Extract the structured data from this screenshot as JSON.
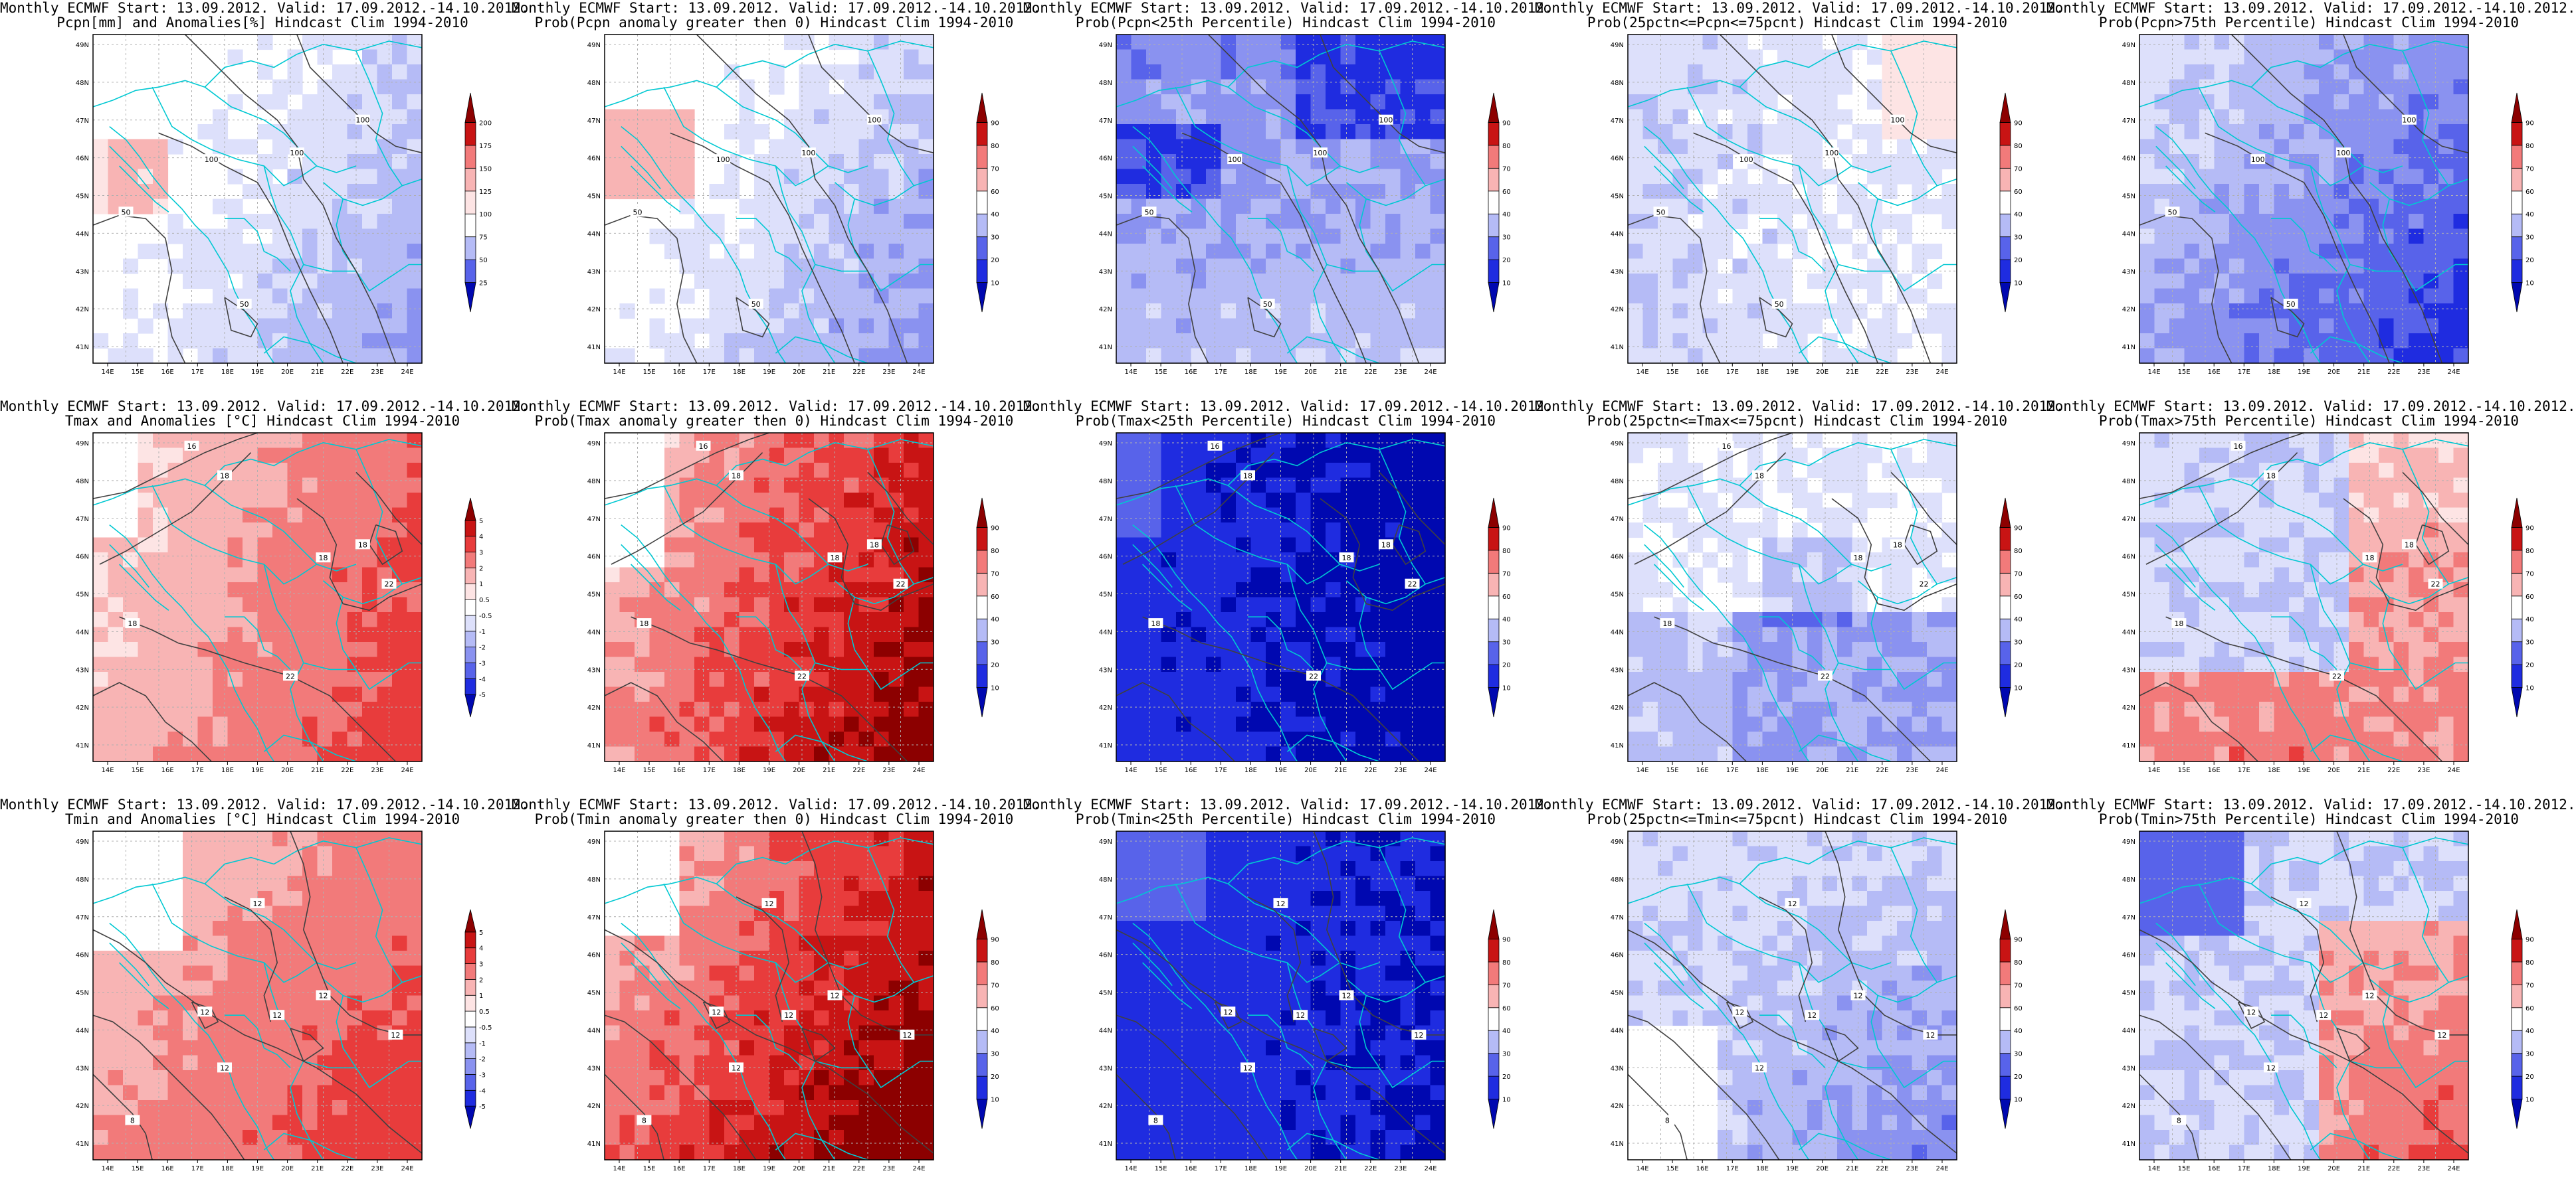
{
  "figure": {
    "colors": {
      "frame": "#000000",
      "coast": "#00c8d2",
      "contour": "#404040",
      "grid": "#b0b0b0",
      "reds": [
        "#ffffff",
        "#fde4e4",
        "#f8b4b4",
        "#f27a7a",
        "#e83c3c",
        "#c81414",
        "#8c0000"
      ],
      "blues": [
        "#ffffff",
        "#dde0fb",
        "#b5bbf6",
        "#8a92f0",
        "#5863ea",
        "#1f2ce0",
        "#0008b0"
      ]
    },
    "lon_labels": [
      "14E",
      "15E",
      "16E",
      "17E",
      "18E",
      "19E",
      "20E",
      "21E",
      "22E",
      "23E",
      "24E"
    ],
    "lat_labels": [
      "41N",
      "42N",
      "43N",
      "44N",
      "45N",
      "46N",
      "47N",
      "48N",
      "49N"
    ],
    "rows": [
      {
        "variable": "precipitation",
        "panels": [
          {
            "title_line1": "Monthly ECMWF Start: 13.09.2012. Valid: 17.09.2012.-14.10.2012.",
            "title_line2": "Pcpn[mm] and Anomalies[%] Hindcast Clim 1994-2010",
            "scheme": "anom",
            "colorbar_labels": [
              "25",
              "50",
              "75",
              "100",
              "125",
              "150",
              "175",
              "200"
            ],
            "contour_labels": [
              "50",
              "100",
              "100",
              "50",
              "100"
            ]
          },
          {
            "title_line1": "Monthly ECMWF Start: 13.09.2012. Valid: 17.09.2012.-14.10.2012.",
            "title_line2": "Prob(Pcpn anomaly greater then 0) Hindcast Clim 1994-2010",
            "scheme": "prob",
            "colorbar_labels": [
              "10",
              "20",
              "30",
              "40",
              "60",
              "70",
              "80",
              "90"
            ],
            "contour_labels": [
              "50",
              "100",
              "100",
              "50",
              "100"
            ]
          },
          {
            "title_line1": "Monthly ECMWF Start: 13.09.2012. Valid: 17.09.2012.-14.10.2012.",
            "title_line2": "Prob(Pcpn<25th Percentile) Hindcast Clim 1994-2010",
            "scheme": "prob",
            "colorbar_labels": [
              "10",
              "20",
              "30",
              "40",
              "60",
              "70",
              "80",
              "90"
            ],
            "contour_labels": [
              "50",
              "100",
              "100",
              "50",
              "100"
            ]
          },
          {
            "title_line1": "Monthly ECMWF Start: 13.09.2012. Valid: 17.09.2012.-14.10.2012.",
            "title_line2": "Prob(25pctn<=Pcpn<=75pcnt) Hindcast Clim 1994-2010",
            "scheme": "prob",
            "colorbar_labels": [
              "10",
              "20",
              "30",
              "40",
              "60",
              "70",
              "80",
              "90"
            ],
            "contour_labels": [
              "50",
              "100",
              "100",
              "50",
              "100"
            ]
          },
          {
            "title_line1": "Monthly ECMWF Start: 13.09.2012. Valid: 17.09.2012.-14.10.2012.",
            "title_line2": "Prob(Pcpn>75th Percentile) Hindcast Clim 1994-2010",
            "scheme": "prob",
            "colorbar_labels": [
              "10",
              "20",
              "30",
              "40",
              "60",
              "70",
              "80",
              "90"
            ],
            "contour_labels": [
              "50",
              "100",
              "100",
              "50",
              "100"
            ]
          }
        ]
      },
      {
        "variable": "tmax",
        "panels": [
          {
            "title_line1": "Monthly ECMWF Start: 13.09.2012. Valid: 17.09.2012.-14.10.2012.",
            "title_line2": "Tmax and Anomalies [°C] Hindcast Clim 1994-2010",
            "scheme": "anom",
            "colorbar_labels": [
              "-5",
              "-4",
              "-3",
              "-2",
              "-1",
              "-0.5",
              "0.5",
              "1",
              "2",
              "3",
              "4",
              "5"
            ],
            "contour_labels": [
              "16",
              "18",
              "18",
              "22",
              "22",
              "18",
              "18"
            ]
          },
          {
            "title_line1": "Monthly ECMWF Start: 13.09.2012. Valid: 17.09.2012.-14.10.2012.",
            "title_line2": "Prob(Tmax anomaly greater then 0) Hindcast Clim 1994-2010",
            "scheme": "prob",
            "colorbar_labels": [
              "10",
              "20",
              "30",
              "40",
              "60",
              "70",
              "80",
              "90"
            ],
            "contour_labels": [
              "16",
              "18",
              "18",
              "22",
              "22",
              "18",
              "18"
            ]
          },
          {
            "title_line1": "Monthly ECMWF Start: 13.09.2012. Valid: 17.09.2012.-14.10.2012.",
            "title_line2": "Prob(Tmax<25th Percentile) Hindcast Clim 1994-2010",
            "scheme": "prob",
            "colorbar_labels": [
              "10",
              "20",
              "30",
              "40",
              "60",
              "70",
              "80",
              "90"
            ],
            "contour_labels": [
              "16",
              "18",
              "18",
              "22",
              "22",
              "18",
              "18"
            ]
          },
          {
            "title_line1": "Monthly ECMWF Start: 13.09.2012. Valid: 17.09.2012.-14.10.2012.",
            "title_line2": "Prob(25pctn<=Tmax<=75pcnt) Hindcast Clim 1994-2010",
            "scheme": "prob",
            "colorbar_labels": [
              "10",
              "20",
              "30",
              "40",
              "60",
              "70",
              "80",
              "90"
            ],
            "contour_labels": [
              "16",
              "18",
              "18",
              "22",
              "22",
              "18",
              "18"
            ]
          },
          {
            "title_line1": "Monthly ECMWF Start: 13.09.2012. Valid: 17.09.2012.-14.10.2012.",
            "title_line2": "Prob(Tmax>75th Percentile) Hindcast Clim 1994-2010",
            "scheme": "prob",
            "colorbar_labels": [
              "10",
              "20",
              "30",
              "40",
              "60",
              "70",
              "80",
              "90"
            ],
            "contour_labels": [
              "16",
              "18",
              "18",
              "22",
              "22",
              "18",
              "18"
            ]
          }
        ]
      },
      {
        "variable": "tmin",
        "panels": [
          {
            "title_line1": "Monthly ECMWF Start: 13.09.2012. Valid: 17.09.2012.-14.10.2012.",
            "title_line2": "Tmin and Anomalies [°C] Hindcast Clim 1994-2010",
            "scheme": "anom",
            "colorbar_labels": [
              "-5",
              "-4",
              "-3",
              "-2",
              "-1",
              "-0.5",
              "0.5",
              "1",
              "2",
              "3",
              "4",
              "5"
            ],
            "contour_labels": [
              "8",
              "12",
              "12",
              "12",
              "12",
              "12",
              "12"
            ]
          },
          {
            "title_line1": "Monthly ECMWF Start: 13.09.2012. Valid: 17.09.2012.-14.10.2012.",
            "title_line2": "Prob(Tmin anomaly greater then 0) Hindcast Clim 1994-2010",
            "scheme": "prob",
            "colorbar_labels": [
              "10",
              "20",
              "30",
              "40",
              "60",
              "70",
              "80",
              "90"
            ],
            "contour_labels": [
              "8",
              "12",
              "12",
              "12",
              "12",
              "12",
              "12"
            ]
          },
          {
            "title_line1": "Monthly ECMWF Start: 13.09.2012. Valid: 17.09.2012.-14.10.2012.",
            "title_line2": "Prob(Tmin<25th Percentile) Hindcast Clim 1994-2010",
            "scheme": "prob",
            "colorbar_labels": [
              "10",
              "20",
              "30",
              "40",
              "60",
              "70",
              "80",
              "90"
            ],
            "contour_labels": [
              "8",
              "12",
              "12",
              "12",
              "12",
              "12",
              "12"
            ]
          },
          {
            "title_line1": "Monthly ECMWF Start: 13.09.2012. Valid: 17.09.2012.-14.10.2012.",
            "title_line2": "Prob(25pctn<=Tmin<=75pcnt) Hindcast Clim 1994-2010",
            "scheme": "prob",
            "colorbar_labels": [
              "10",
              "20",
              "30",
              "40",
              "60",
              "70",
              "80",
              "90"
            ],
            "contour_labels": [
              "8",
              "12",
              "12",
              "12",
              "12",
              "12",
              "12"
            ]
          },
          {
            "title_line1": "Monthly ECMWF Start: 13.09.2012. Valid: 17.09.2012.-14.10.2012.",
            "title_line2": "Prob(Tmin>75th Percentile) Hindcast Clim 1994-2010",
            "scheme": "prob",
            "colorbar_labels": [
              "10",
              "20",
              "30",
              "40",
              "60",
              "70",
              "80",
              "90"
            ],
            "contour_labels": [
              "8",
              "12",
              "12",
              "12",
              "12",
              "12",
              "12"
            ]
          }
        ]
      }
    ]
  }
}
